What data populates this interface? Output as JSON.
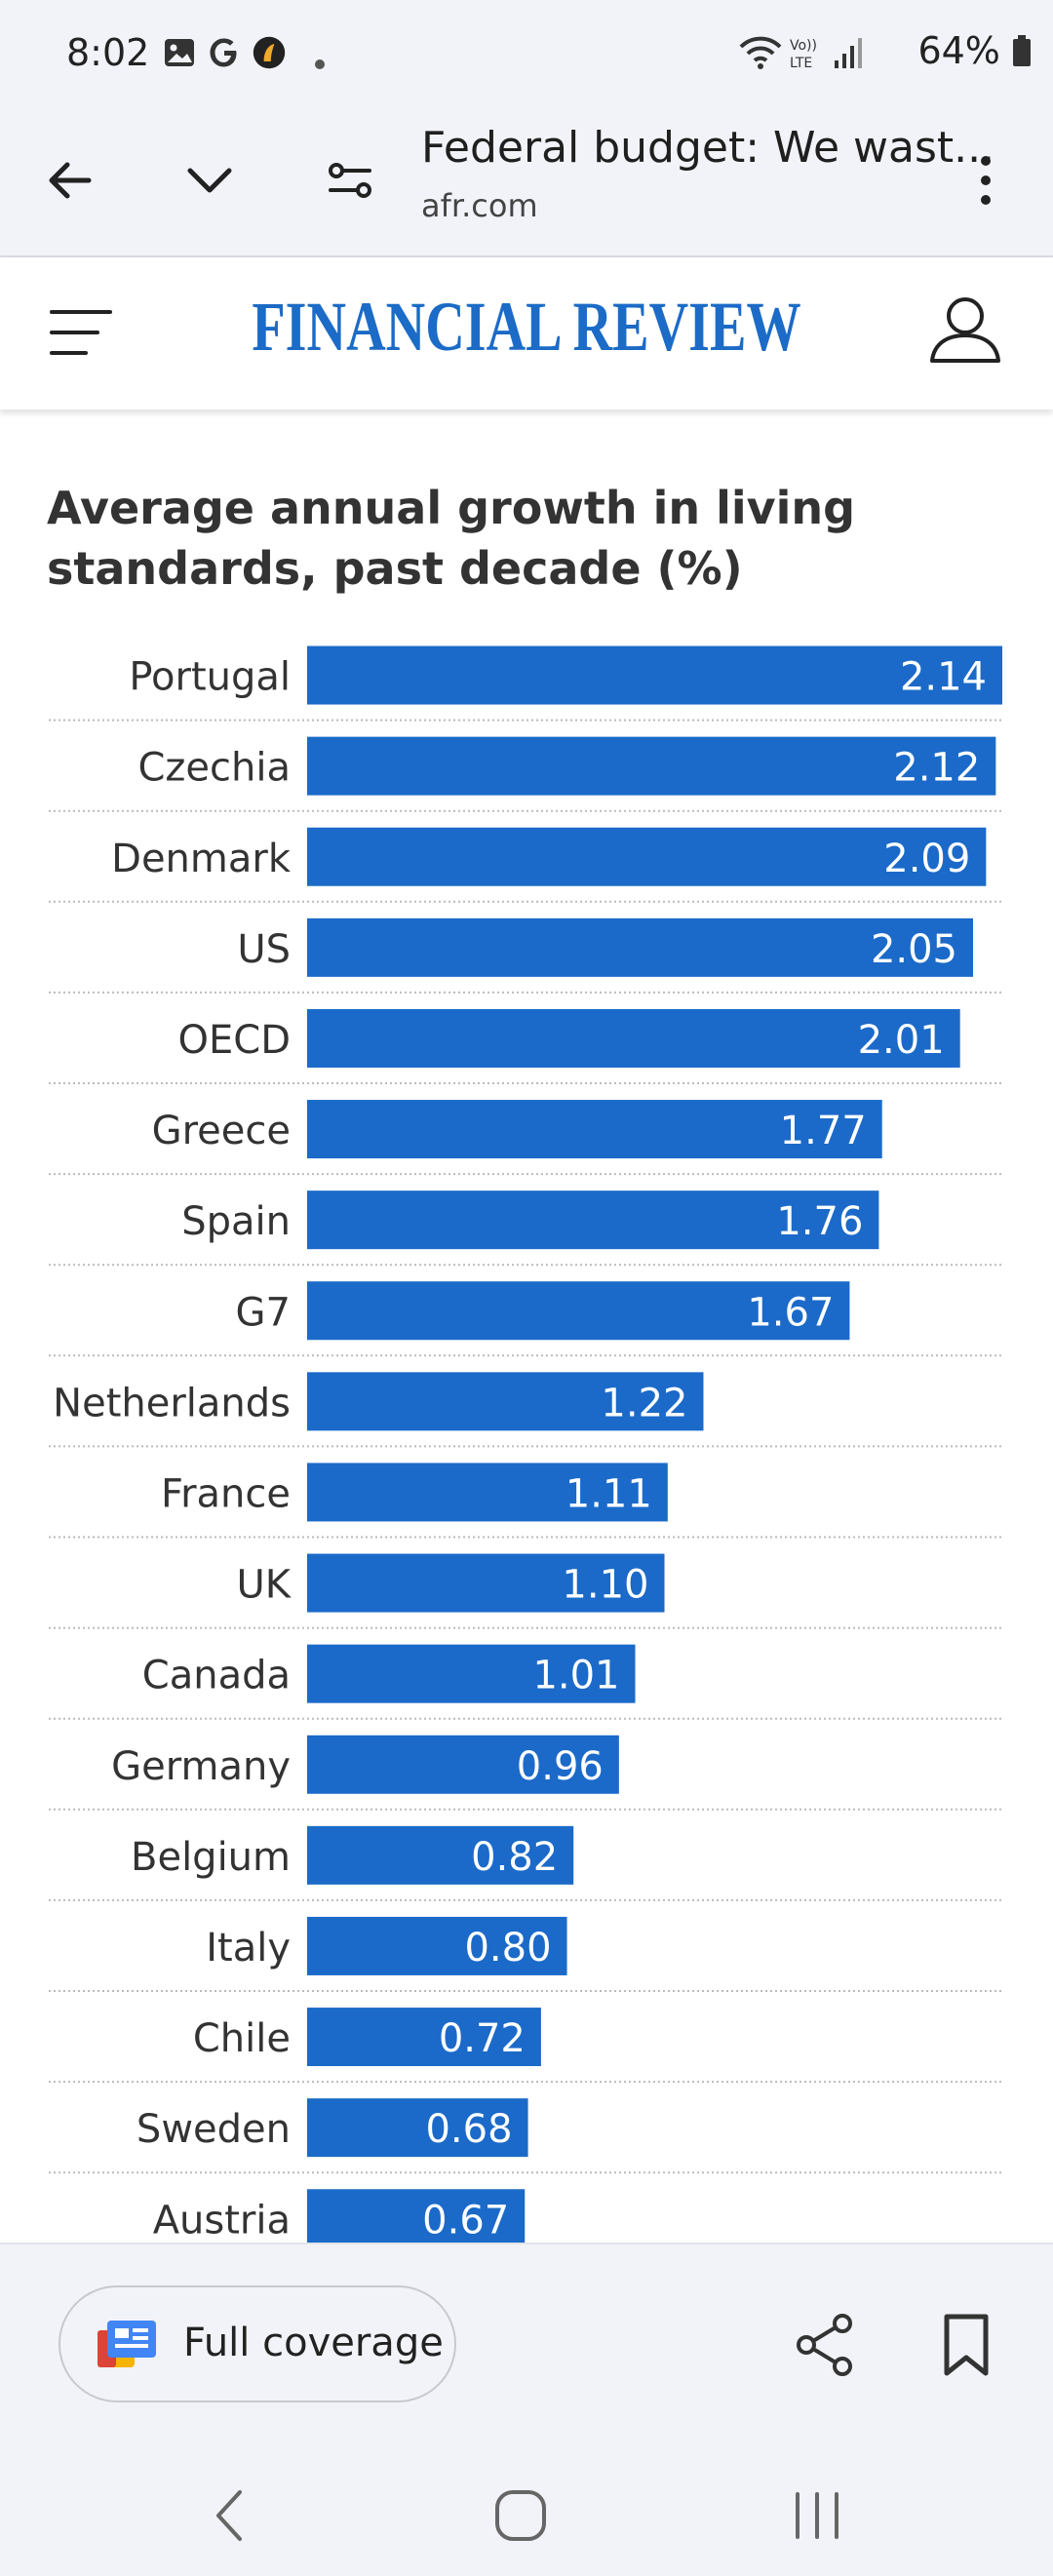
{
  "status_bar": {
    "time": "8:02",
    "battery": "64%"
  },
  "browser": {
    "title": "Federal budget: We wast...",
    "url": "afr.com"
  },
  "site": {
    "logo": "FINANCIAL REVIEW"
  },
  "bottom_bar": {
    "full_coverage_label": "Full coverage"
  },
  "colors": {
    "bar": "#1b6ac9",
    "accent": "#1b6bc7"
  },
  "chart_data": {
    "type": "bar",
    "orientation": "horizontal",
    "title": "Average annual growth in living standards, past decade (%)",
    "categories": [
      "Portugal",
      "Czechia",
      "Denmark",
      "US",
      "OECD",
      "Greece",
      "Spain",
      "G7",
      "Netherlands",
      "France",
      "UK",
      "Canada",
      "Germany",
      "Belgium",
      "Italy",
      "Chile",
      "Sweden",
      "Austria"
    ],
    "values": [
      2.14,
      2.12,
      2.09,
      2.05,
      2.01,
      1.77,
      1.76,
      1.67,
      1.22,
      1.11,
      1.1,
      1.01,
      0.96,
      0.82,
      0.8,
      0.72,
      0.68,
      0.67
    ],
    "value_labels": [
      "2.14",
      "2.12",
      "2.09",
      "2.05",
      "2.01",
      "1.77",
      "1.76",
      "1.67",
      "1.22",
      "1.11",
      "1.10",
      "1.01",
      "0.96",
      "0.82",
      "0.80",
      "0.72",
      "0.68",
      "0.67"
    ],
    "xlim": [
      0,
      2.14
    ],
    "grid": false
  }
}
